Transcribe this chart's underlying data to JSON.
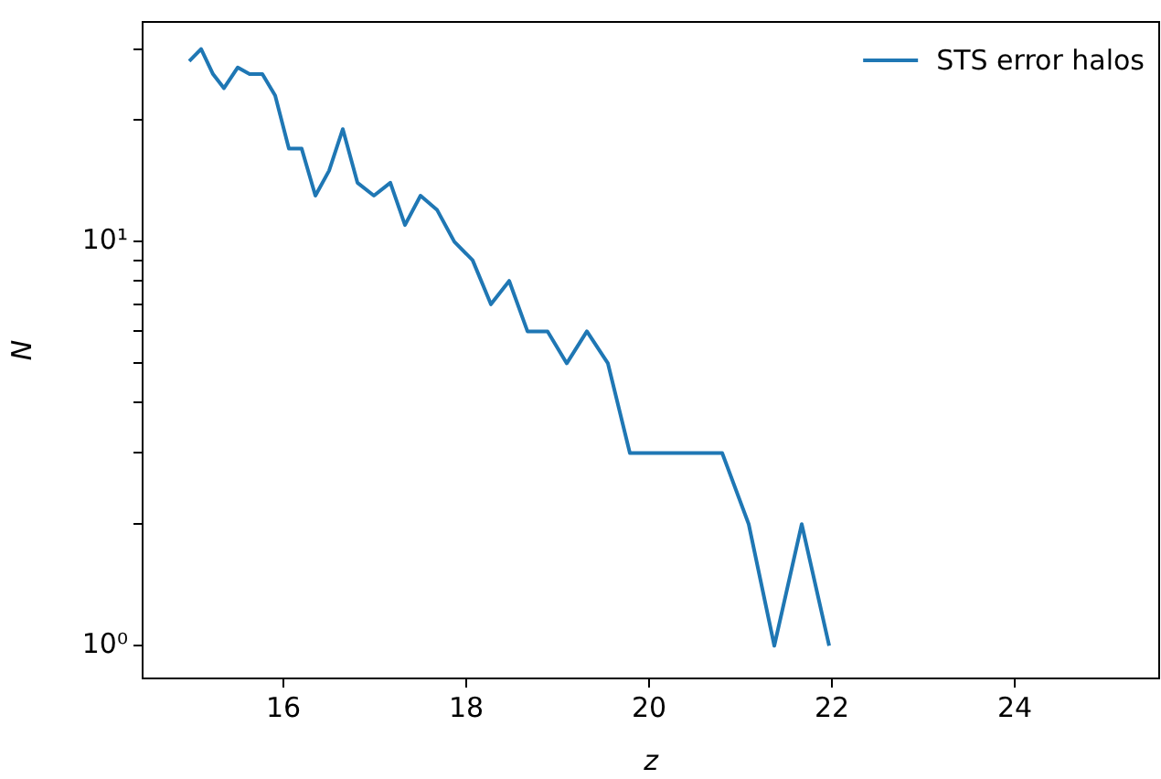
{
  "chart_data": {
    "type": "line",
    "xlabel": "z",
    "ylabel": "N",
    "x": [
      14.97,
      15.1,
      15.23,
      15.35,
      15.5,
      15.63,
      15.77,
      15.91,
      16.06,
      16.2,
      16.35,
      16.5,
      16.65,
      16.81,
      16.99,
      17.17,
      17.33,
      17.5,
      17.68,
      17.87,
      18.07,
      18.27,
      18.47,
      18.67,
      18.89,
      19.1,
      19.32,
      19.55,
      19.79,
      20.8,
      21.09,
      21.37,
      21.67,
      21.97
    ],
    "series": [
      {
        "name": "STS error halos",
        "color": "#1f77b4",
        "values": [
          28,
          30,
          26,
          24,
          27,
          26,
          26,
          23,
          17,
          17,
          13,
          15,
          19,
          14,
          13,
          14,
          11,
          13,
          12,
          10,
          9,
          7,
          8,
          6,
          6,
          5,
          6,
          5,
          3,
          3,
          2,
          1,
          2,
          1
        ]
      }
    ],
    "log": "y",
    "xlim": [
      14.46,
      25.58
    ],
    "ylim": [
      0.83,
      35
    ],
    "xticks": [
      16,
      18,
      20,
      22,
      24
    ],
    "yticks": [
      {
        "value": 1,
        "label": "10⁰"
      },
      {
        "value": 2,
        "label": null
      },
      {
        "value": 3,
        "label": null
      },
      {
        "value": 4,
        "label": null
      },
      {
        "value": 5,
        "label": null
      },
      {
        "value": 6,
        "label": null
      },
      {
        "value": 7,
        "label": null
      },
      {
        "value": 8,
        "label": null
      },
      {
        "value": 9,
        "label": null
      },
      {
        "value": 10,
        "label": "10¹"
      },
      {
        "value": 20,
        "label": null
      },
      {
        "value": 30,
        "label": null
      }
    ],
    "legend": "top right",
    "grid": false,
    "marker": "none",
    "line_style": "solid"
  }
}
